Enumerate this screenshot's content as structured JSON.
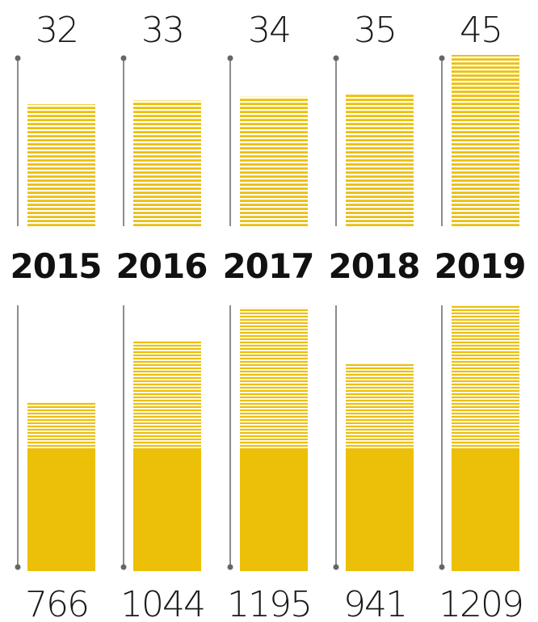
{
  "colors": {
    "bar": "#ecbf08",
    "stripe_gap": "#ffffff",
    "axis": "#666666"
  },
  "chart_data": [
    {
      "type": "bar",
      "categories": [
        "2015",
        "2016",
        "2017",
        "2018",
        "2019"
      ],
      "values": [
        32,
        33,
        34,
        35,
        45
      ],
      "ylim": [
        0,
        45
      ]
    },
    {
      "type": "bar",
      "categories": [
        "2015",
        "2016",
        "2017",
        "2018",
        "2019"
      ],
      "values": [
        766,
        1044,
        1195,
        941,
        1209
      ],
      "ylim": [
        0,
        1209
      ]
    }
  ]
}
